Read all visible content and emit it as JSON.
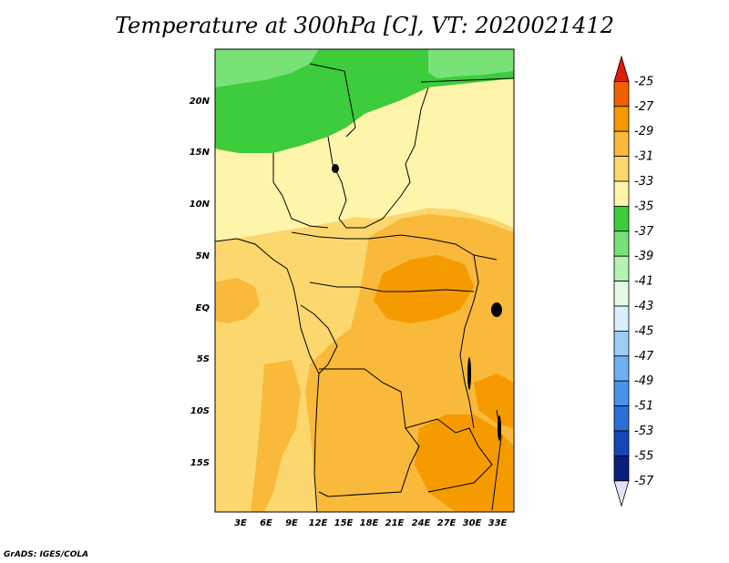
{
  "title": "Temperature at 300hPa [C], VT: 2020021412",
  "credit": "GrADS: IGES/COLA",
  "map": {
    "lat_labels": [
      "20N",
      "15N",
      "10N",
      "5N",
      "EQ",
      "5S",
      "10S",
      "15S"
    ],
    "lon_labels": [
      "3E",
      "6E",
      "9E",
      "12E",
      "15E",
      "18E",
      "21E",
      "24E",
      "27E",
      "30E",
      "33E"
    ]
  },
  "colorbar": {
    "labels": [
      "-25",
      "-27",
      "-29",
      "-31",
      "-33",
      "-35",
      "-37",
      "-39",
      "-41",
      "-43",
      "-45",
      "-47",
      "-49",
      "-51",
      "-53",
      "-55",
      "-57"
    ],
    "colors": [
      "#e01c0e",
      "#f06000",
      "#f59b00",
      "#f9b93a",
      "#fcd76e",
      "#fff5aa",
      "#3ccc3c",
      "#78e278",
      "#b3f2b3",
      "#e4fae4",
      "#d8efff",
      "#9ccdf7",
      "#6fb0f0",
      "#4a93ea",
      "#2c6ed8",
      "#1446b8",
      "#0a1e7c",
      "#e2e3f5"
    ]
  }
}
